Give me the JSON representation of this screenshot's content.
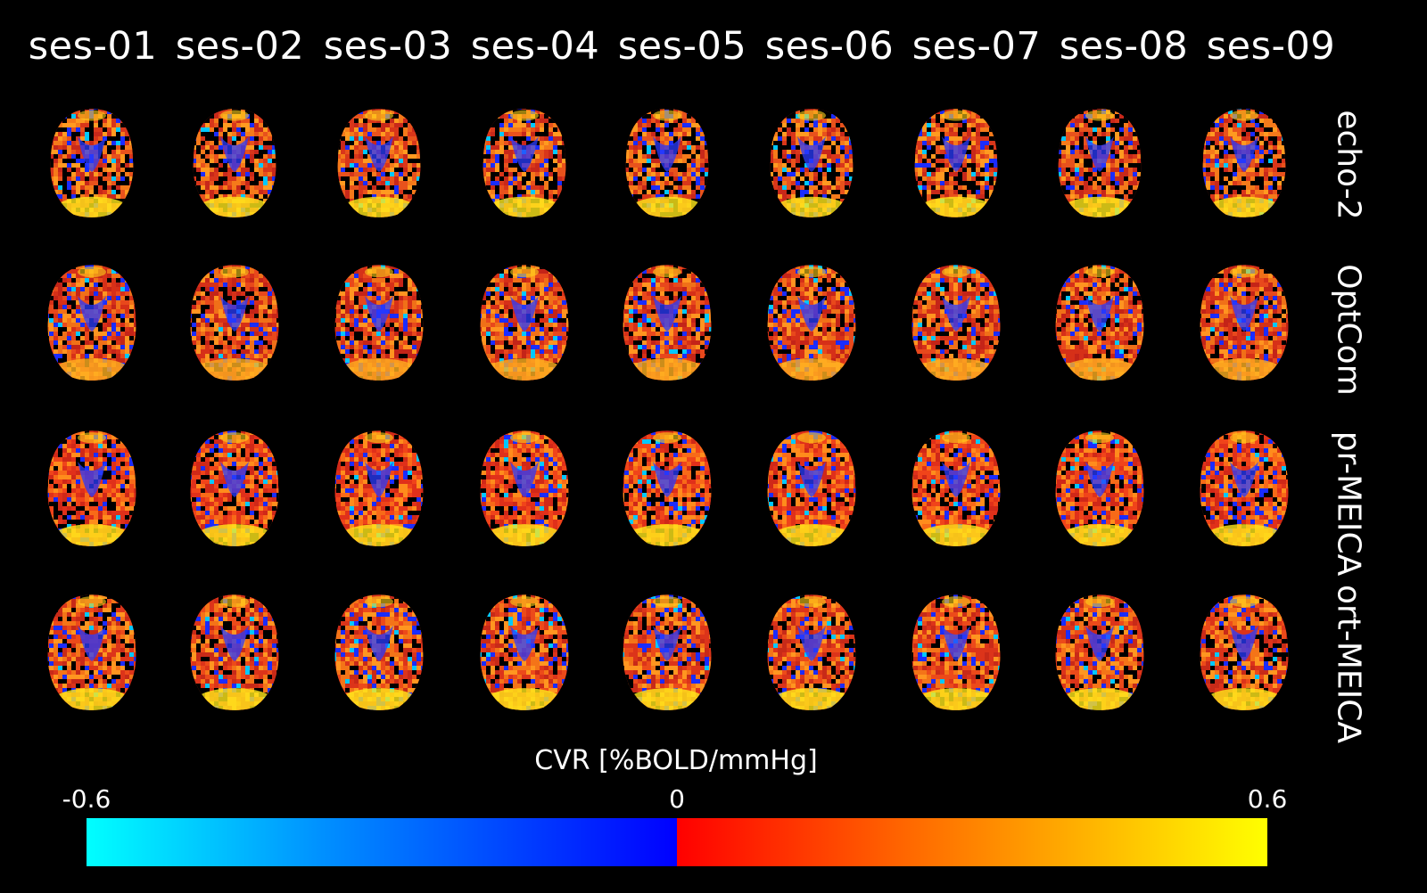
{
  "sessions": [
    "ses-01",
    "ses-02",
    "ses-03",
    "ses-04",
    "ses-05",
    "ses-06",
    "ses-07",
    "ses-08",
    "ses-09"
  ],
  "methods": [
    "echo-2",
    "OptCom",
    "pr-MEICA",
    "ort-MEICA"
  ],
  "colorbar": {
    "title": "CVR [%BOLD/mmHg]",
    "min_label": "-0.6",
    "mid_label": "0",
    "max_label": "0.6",
    "colormap_negative": [
      "#00ffff",
      "#0000ff"
    ],
    "colormap_positive": [
      "#ff0000",
      "#ffff00"
    ]
  },
  "image_description_colors": {
    "background": "#000000"
  }
}
